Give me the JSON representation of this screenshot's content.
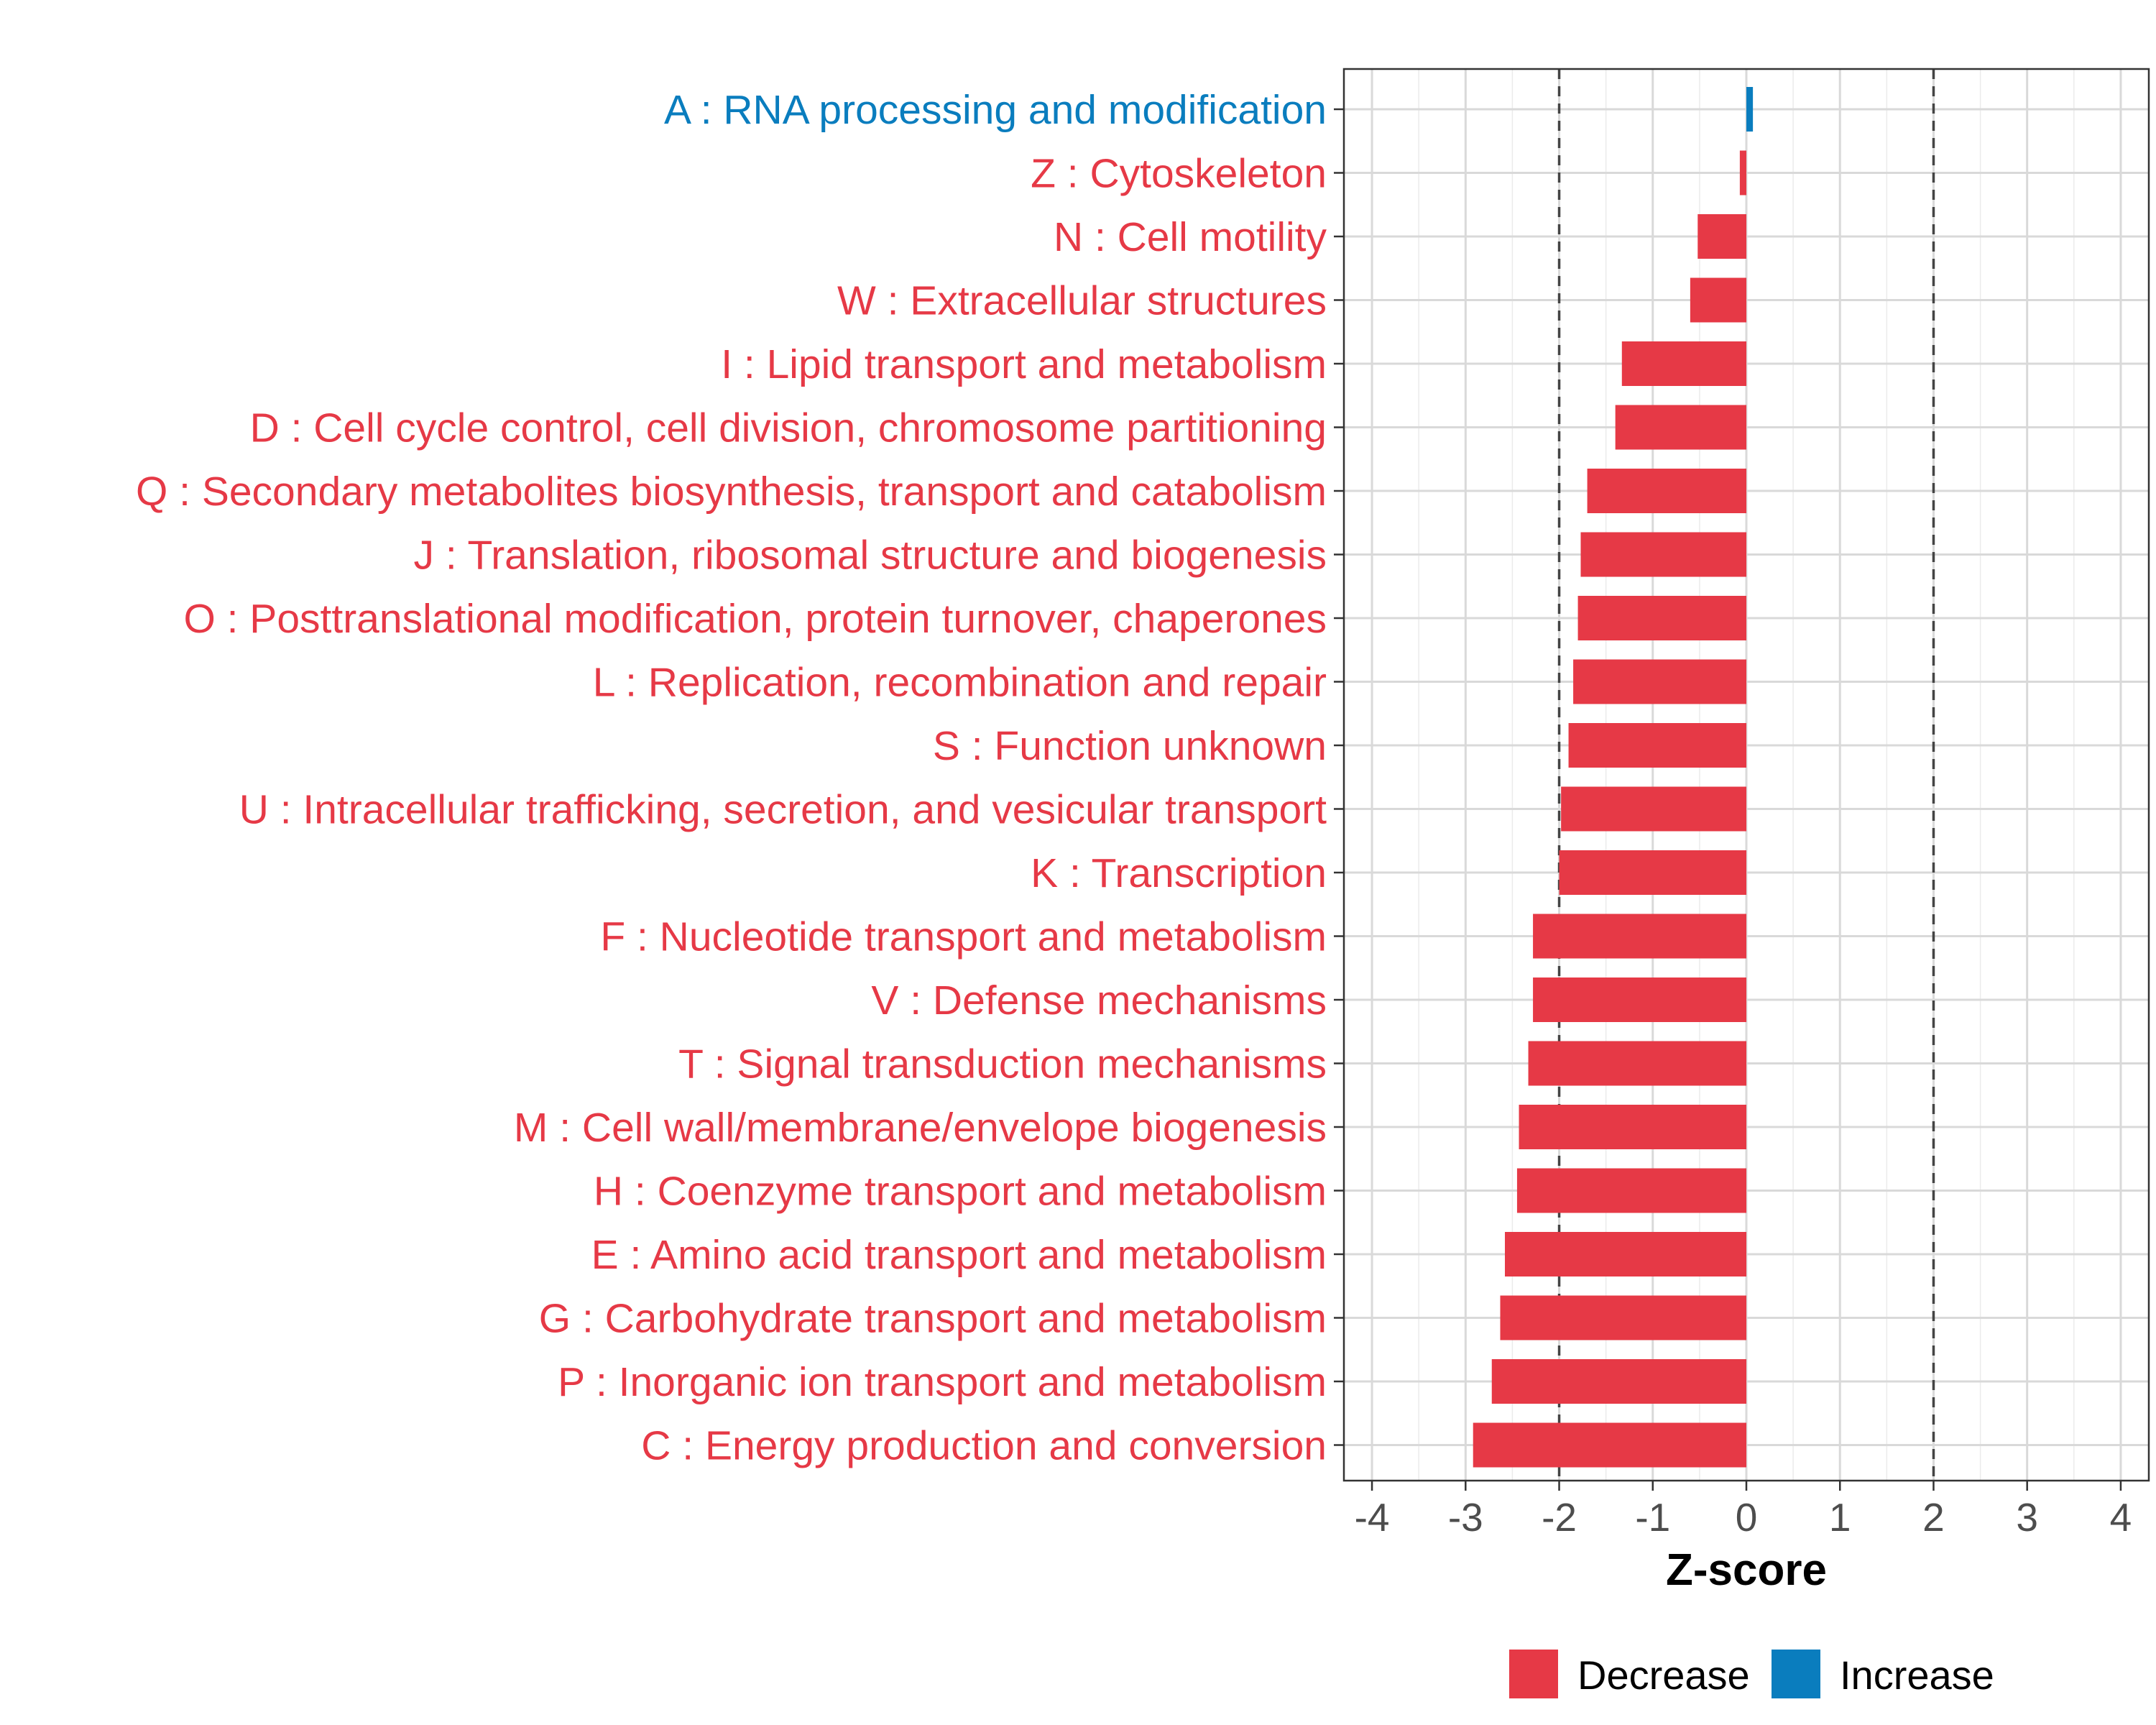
{
  "chart_data": {
    "type": "bar",
    "orientation": "horizontal",
    "xlabel": "Z-score",
    "xlim": [
      -4.3,
      4.3
    ],
    "xticks": [
      -4,
      -3,
      -2,
      -1,
      0,
      1,
      2,
      3,
      4
    ],
    "xtick_labels": [
      "-4",
      "-3",
      "-2",
      "-1",
      "0",
      "1",
      "2",
      "3",
      "4"
    ],
    "reference_lines": [
      -2,
      2
    ],
    "grid": true,
    "legend_position": "bottom",
    "colors": {
      "decrease": "#E63946",
      "increase": "#0A7DBE"
    },
    "legend": [
      {
        "label": "Decrease",
        "key": "decrease"
      },
      {
        "label": "Increase",
        "key": "increase"
      }
    ],
    "categories": [
      "A : RNA processing and modification",
      "Z : Cytoskeleton",
      "N : Cell motility",
      "W : Extracellular structures",
      "I : Lipid transport and metabolism",
      "D : Cell cycle control, cell division, chromosome partitioning",
      "Q : Secondary metabolites biosynthesis, transport and catabolism",
      "J : Translation, ribosomal structure and biogenesis",
      "O : Posttranslational modification, protein turnover, chaperones",
      "L : Replication, recombination and repair",
      "S : Function unknown",
      "U : Intracellular trafficking, secretion, and vesicular transport",
      "K : Transcription",
      "F : Nucleotide transport and metabolism",
      "V : Defense mechanisms",
      "T : Signal transduction mechanisms",
      "M : Cell wall/membrane/envelope biogenesis",
      "H : Coenzyme transport and metabolism",
      "E : Amino acid transport and metabolism",
      "G : Carbohydrate transport and metabolism",
      "P : Inorganic ion transport and metabolism",
      "C : Energy production and conversion"
    ],
    "values": [
      0.07,
      -0.07,
      -0.52,
      -0.6,
      -1.33,
      -1.4,
      -1.7,
      -1.77,
      -1.8,
      -1.85,
      -1.9,
      -1.98,
      -2.0,
      -2.28,
      -2.28,
      -2.33,
      -2.43,
      -2.45,
      -2.58,
      -2.63,
      -2.72,
      -2.92
    ]
  }
}
